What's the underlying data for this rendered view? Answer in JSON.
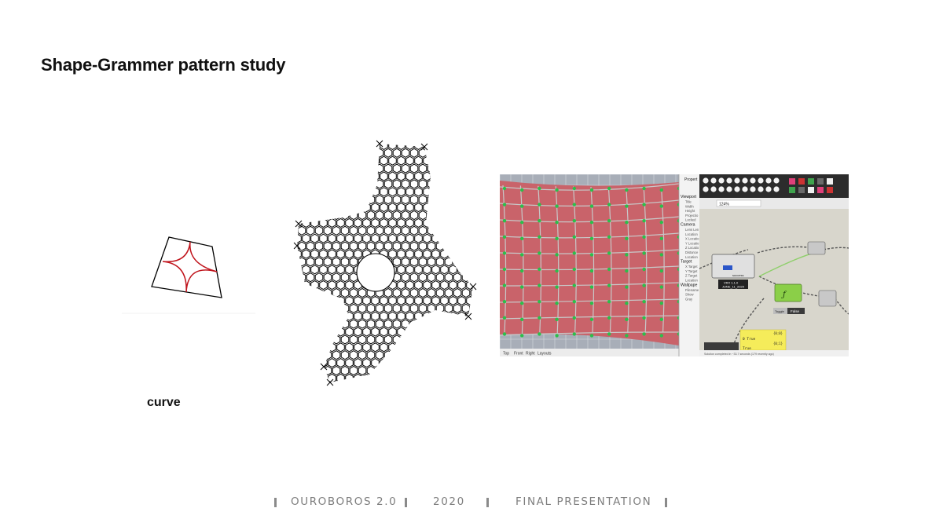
{
  "slide": {
    "title": "Shape-Grammer pattern study",
    "caption": "curve"
  },
  "figures": {
    "curve_diagram": {
      "name": "curve",
      "line_color": "#000000",
      "curve_color": "#c0141c"
    },
    "pattern_drawing": {
      "name": "four-armed pattern",
      "line_color": "#000000"
    },
    "software_screenshot": {
      "surface_color": "#c9636a",
      "node_color": "#2bbf4a",
      "grid_color": "#c8c8c8",
      "canvas_color": "#d8d6cc",
      "panel": {
        "tab_label": "Propert",
        "section_viewport": "Viewport",
        "viewport_fields": [
          "Title",
          "Width",
          "Height",
          "Projectio",
          "Locked"
        ],
        "section_camera": "Camera",
        "camera_fields": [
          "Lens Len",
          "Location",
          "X Locatio",
          "Y Locatio",
          "Z Locatio",
          "Distance",
          "Location"
        ],
        "section_target": "Target",
        "target_fields": [
          "X Target",
          "Y Target",
          "Z Target",
          "Location"
        ],
        "section_wallpaper": "Wallpape",
        "wallpaper_fields": [
          "Filename",
          "Show",
          "Gray"
        ]
      },
      "viewport_tabs": [
        "Top",
        "Front",
        "Right",
        "Layouts"
      ],
      "zoom_label": "124%",
      "node_version": "VRX 1.1.0",
      "node_date": "JUNE_11_2020",
      "node_success": "success",
      "toggle_label": "Toggle",
      "toggle_value": "False",
      "panel_value": "0 True",
      "panel_index": "{0;0}",
      "panel_value2": "True",
      "panel_index2": "{0;1}",
      "status_text": "Solution completed in ~33.7 seconds (179 recently ago)"
    }
  },
  "footer": {
    "project": "OUROBOROS 2.0",
    "year": "2020",
    "label": "FINAL PRESENTATION"
  }
}
